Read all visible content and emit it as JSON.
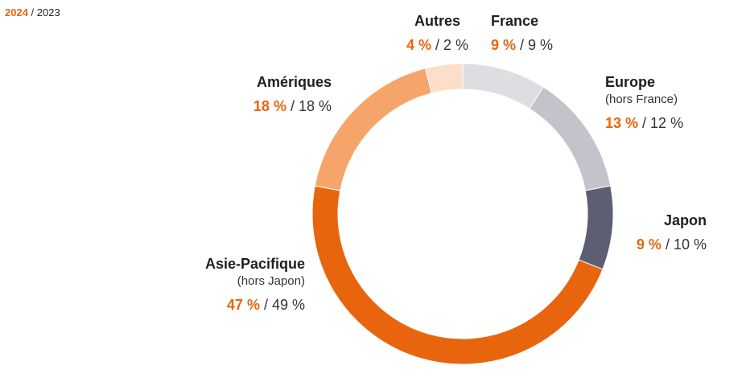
{
  "legend": {
    "current": "2024",
    "separator": " / ",
    "previous": "2023"
  },
  "chart_data": {
    "type": "pie",
    "style": "donut",
    "series": [
      {
        "name": "2024",
        "values": [
          9,
          13,
          9,
          47,
          18,
          4
        ]
      },
      {
        "name": "2023",
        "values": [
          9,
          12,
          10,
          49,
          18,
          2
        ]
      }
    ],
    "categories": [
      "France",
      "Europe",
      "Japon",
      "Asie-Pacifique",
      "Amériques",
      "Autres"
    ],
    "slices": [
      {
        "name": "France",
        "sub": "",
        "v2024": "9 %",
        "v2023": "9 %",
        "value": 9,
        "color": "#dedde2"
      },
      {
        "name": "Europe",
        "sub": "(hors France)",
        "v2024": "13 %",
        "v2023": "12 %",
        "value": 13,
        "color": "#c4c3cb"
      },
      {
        "name": "Japon",
        "sub": "",
        "v2024": "9 %",
        "v2023": "10 %",
        "value": 9,
        "color": "#5c5e74"
      },
      {
        "name": "Asie-Pacifique",
        "sub": "(hors Japon)",
        "v2024": "47 %",
        "v2023": "49 %",
        "value": 47,
        "color": "#e8650e"
      },
      {
        "name": "Amériques",
        "sub": "",
        "v2024": "18 %",
        "v2023": "18 %",
        "value": 18,
        "color": "#f5a56a"
      },
      {
        "name": "Autres",
        "sub": "",
        "v2024": "4 %",
        "v2023": "2 %",
        "value": 4,
        "color": "#fcdfc9"
      }
    ]
  }
}
